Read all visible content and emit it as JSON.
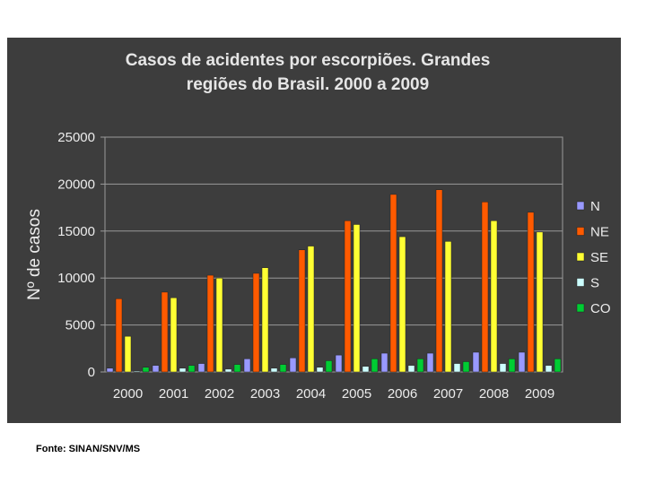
{
  "chart_data": {
    "type": "bar",
    "title": [
      "Casos de acidentes por escorpiões. Grandes",
      "regiões do Brasil. 2000 a 2009"
    ],
    "xlabel": "",
    "ylabel": "Nº de casos",
    "ylim": [
      0,
      25000
    ],
    "yticks": [
      0,
      5000,
      10000,
      15000,
      20000,
      25000
    ],
    "categories": [
      "2000",
      "2001",
      "2002",
      "2003",
      "2004",
      "2005",
      "2006",
      "2007",
      "2008",
      "2009"
    ],
    "grid": true,
    "legend_position": "right",
    "series": [
      {
        "name": "N",
        "color": "#9999ff",
        "values": [
          400,
          700,
          900,
          1400,
          1500,
          1800,
          2000,
          2000,
          2100,
          2100
        ]
      },
      {
        "name": "NE",
        "color": "#ff5a00",
        "values": [
          7800,
          8500,
          10300,
          10500,
          13000,
          16100,
          18900,
          19400,
          18100,
          17000
        ]
      },
      {
        "name": "SE",
        "color": "#ffff33",
        "values": [
          3800,
          7900,
          10000,
          11100,
          13400,
          15700,
          14400,
          13900,
          16100,
          14900
        ]
      },
      {
        "name": "S",
        "color": "#ccffff",
        "values": [
          100,
          400,
          300,
          400,
          500,
          600,
          700,
          900,
          900,
          700
        ]
      },
      {
        "name": "CO",
        "color": "#00cc33",
        "values": [
          500,
          700,
          800,
          800,
          1200,
          1400,
          1400,
          1100,
          1400,
          1400
        ]
      }
    ]
  },
  "source_note": "Fonte: SINAN/SNV/MS"
}
